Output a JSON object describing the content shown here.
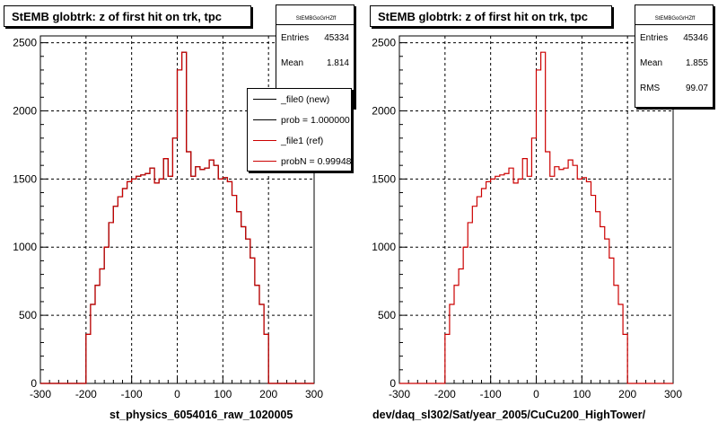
{
  "colors": {
    "new": "#000000",
    "ref": "#cc0000",
    "grid": "#000000"
  },
  "left": {
    "title": "StEMB globtrk: z of first hit on trk, tpc",
    "stats": {
      "name": "StEMBGoGrHZff",
      "rows": [
        {
          "label": "Entries",
          "value": "45334"
        },
        {
          "label": "Mean",
          "value": "1.814"
        },
        {
          "label": "RMS",
          "value": ""
        }
      ]
    },
    "legend": [
      {
        "label": "_file0 (new)",
        "color": "#000000"
      },
      {
        "label": "prob = 1.000000",
        "color": "#000000"
      },
      {
        "label": "_file1 (ref)",
        "color": "#cc0000"
      },
      {
        "label": "probN = 0.99948",
        "color": "#cc0000"
      }
    ],
    "bottom_label": "st_physics_6054016_raw_1020005"
  },
  "right": {
    "title": "StEMB globtrk: z of first hit on trk, tpc",
    "stats": {
      "name": "StEMBGoGrHZff",
      "rows": [
        {
          "label": "Entries",
          "value": "45346"
        },
        {
          "label": "Mean",
          "value": "1.855"
        },
        {
          "label": "RMS",
          "value": "99.07"
        }
      ]
    },
    "bottom_label": "dev/daq_sl302/Sat/year_2005/CuCu200_HighTower/"
  },
  "chart_data": [
    {
      "type": "histogram",
      "title": "StEMB globtrk: z of first hit on trk, tpc",
      "xlim": [
        -300,
        300
      ],
      "ylim": [
        0,
        2550
      ],
      "xticks": [
        -300,
        -200,
        -100,
        0,
        100,
        200,
        300
      ],
      "yticks": [
        0,
        500,
        1000,
        1500,
        2000,
        2500
      ],
      "grid": true,
      "bin_width": 10,
      "bin_start": -200,
      "series": [
        {
          "name": "_file0 (new)",
          "color": "#000000",
          "values": [
            360,
            580,
            720,
            840,
            1000,
            1180,
            1300,
            1370,
            1430,
            1480,
            1500,
            1520,
            1530,
            1540,
            1580,
            1470,
            1500,
            1650,
            1520,
            1800,
            2300,
            2430,
            1700,
            1520,
            1590,
            1570,
            1580,
            1640,
            1600,
            1500,
            1510,
            1480,
            1380,
            1260,
            1150,
            1060,
            920,
            720,
            580,
            360
          ]
        },
        {
          "name": "_file1 (ref)",
          "color": "#cc0000",
          "values": [
            360,
            580,
            720,
            840,
            1000,
            1180,
            1300,
            1370,
            1430,
            1480,
            1500,
            1520,
            1530,
            1540,
            1580,
            1470,
            1500,
            1650,
            1520,
            1800,
            2300,
            2430,
            1700,
            1520,
            1590,
            1570,
            1580,
            1640,
            1600,
            1500,
            1510,
            1480,
            1380,
            1260,
            1150,
            1060,
            920,
            720,
            580,
            360
          ]
        }
      ]
    },
    {
      "type": "histogram",
      "title": "StEMB globtrk: z of first hit on trk, tpc",
      "xlim": [
        -300,
        300
      ],
      "ylim": [
        0,
        2550
      ],
      "xticks": [
        -300,
        -200,
        -100,
        0,
        100,
        200,
        300
      ],
      "yticks": [
        0,
        500,
        1000,
        1500,
        2000,
        2500
      ],
      "grid": true,
      "bin_width": 10,
      "bin_start": -200,
      "series": [
        {
          "name": "_file1 (ref)",
          "color": "#cc0000",
          "values": [
            360,
            580,
            720,
            840,
            1000,
            1180,
            1300,
            1370,
            1430,
            1480,
            1500,
            1520,
            1530,
            1540,
            1580,
            1470,
            1500,
            1650,
            1520,
            1800,
            2300,
            2430,
            1700,
            1520,
            1590,
            1570,
            1580,
            1640,
            1600,
            1500,
            1510,
            1480,
            1380,
            1260,
            1150,
            1060,
            920,
            720,
            580,
            360
          ]
        }
      ]
    }
  ]
}
